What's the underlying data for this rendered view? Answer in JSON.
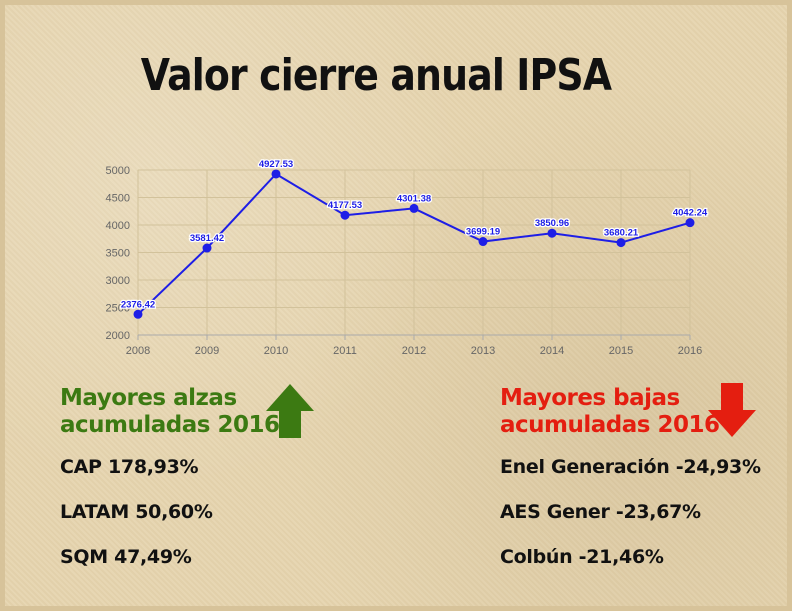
{
  "title": "Valor cierre anual IPSA",
  "colors": {
    "line": "#1e1ee6",
    "gains": "#3c7a12",
    "losses": "#e41e10"
  },
  "chart_data": {
    "type": "line",
    "x": [
      "2008",
      "2009",
      "2010",
      "2011",
      "2012",
      "2013",
      "2014",
      "2015",
      "2016"
    ],
    "series": [
      {
        "values": [
          2376.42,
          3581.42,
          4927.53,
          4177.53,
          4301.38,
          3699.19,
          3850.96,
          3680.21,
          4042.24
        ]
      }
    ],
    "data_labels": [
      "2376.42",
      "3581.42",
      "4927.53",
      "4177.53",
      "4301.38",
      "3699.19",
      "3850.96",
      "3680.21",
      "4042.24"
    ],
    "yticks": [
      "2000",
      "2500",
      "3000",
      "3500",
      "4000",
      "4500",
      "5000"
    ],
    "ylim": [
      2000,
      5000
    ],
    "grid": true,
    "title": "",
    "xlabel": "",
    "ylabel": ""
  },
  "gains": {
    "heading_line1": "Mayores alzas",
    "heading_line2": "acumuladas 2016",
    "icon": "arrow-up-icon",
    "items": [
      "CAP 178,93%",
      "LATAM 50,60%",
      "SQM 47,49%"
    ]
  },
  "losses": {
    "heading_line1": "Mayores bajas",
    "heading_line2": "acumuladas 2016",
    "icon": "arrow-down-icon",
    "items": [
      "Enel Generación -24,93%",
      "AES Gener -23,67%",
      "Colbún -21,46%"
    ]
  }
}
